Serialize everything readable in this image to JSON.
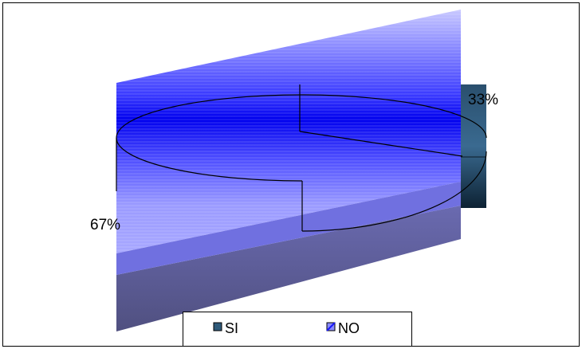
{
  "chart_data": {
    "type": "pie",
    "style": "3d",
    "categories": [
      "SI",
      "NO"
    ],
    "values": [
      33,
      67
    ],
    "data_labels": [
      "33%",
      "67%"
    ],
    "colors": {
      "SI": "#2f5a7a",
      "NO": "#1a1aff"
    },
    "legend": {
      "position": "bottom",
      "entries": [
        "SI",
        "NO"
      ]
    }
  }
}
